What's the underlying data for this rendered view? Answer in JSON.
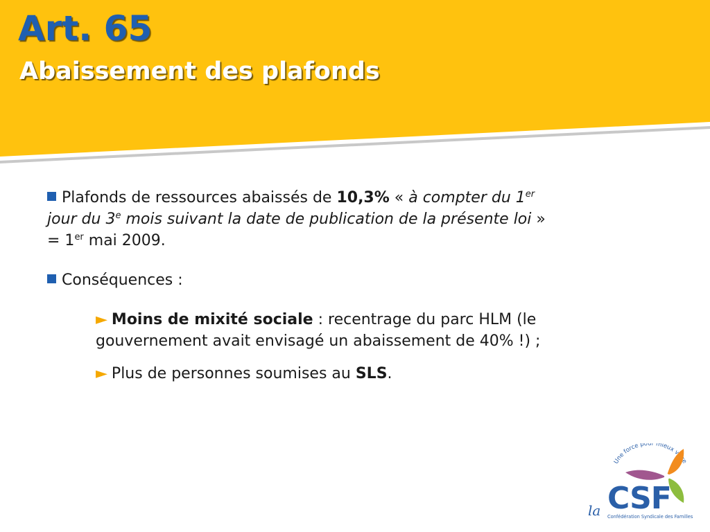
{
  "title": {
    "main": "Art. 65",
    "sub": "Abaissement des plafonds"
  },
  "bullet1": {
    "text1": "Plafonds de ressources abaissés de ",
    "bold": "10,3%",
    "text2": " « ",
    "italic1": "à compter du 1",
    "sup1": "er",
    "italic2": "jour du 3",
    "sup2": "e",
    "italic3": " mois suivant la date de publication de la présente loi",
    "text3": " »",
    "text4": "= 1",
    "sup3": "er",
    "text5": " mai 2009."
  },
  "bullet2": {
    "text": "Conséquences :"
  },
  "sub1": {
    "arrow": "►",
    "bold": "Moins de mixité sociale",
    "text1": " : recentrage du parc HLM (le",
    "text2": "gouvernement avait envisagé un abaissement de 40% !) ;"
  },
  "sub2": {
    "arrow": "►",
    "text1": "Plus de personnes soumises au ",
    "bold": "SLS",
    "text2": "."
  },
  "logo": {
    "tagline": "Une force pour mieux vivre",
    "la": "la",
    "acronym": "CSF",
    "fullname": "Confédération Syndicale des Familles"
  },
  "colors": {
    "header_yellow": "#ffc20e",
    "title_blue": "#1f5fb0",
    "arrow_orange": "#f5a800"
  }
}
